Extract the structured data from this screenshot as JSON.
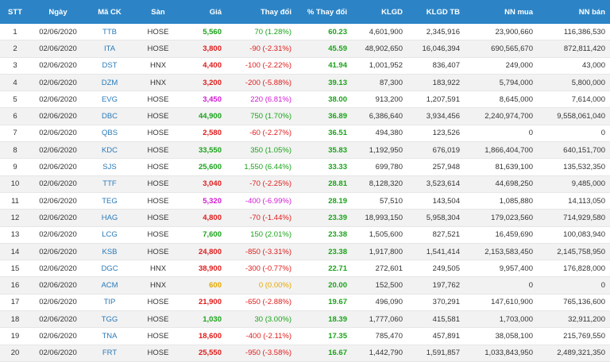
{
  "columns": [
    "STT",
    "Ngày",
    "Mã CK",
    "Sàn",
    "Giá",
    "Thay đổi",
    "% Thay đổi",
    "KLGD",
    "KLGD TB",
    "NN mua",
    "NN bán"
  ],
  "colors": {
    "up": "#1aa31a",
    "down": "#e01b1b",
    "ceiling": "#d11ad1",
    "reference": "#e6a800",
    "header_bg": "#2c84c6"
  },
  "rows": [
    {
      "stt": "1",
      "date": "02/06/2020",
      "symbol": "TTB",
      "exchange": "HOSE",
      "price": "5,560",
      "change": "70 (1.28%)",
      "pct": "60.23",
      "klgd": "4,601,900",
      "klgd_tb": "2,345,916",
      "nn_mua": "23,900,660",
      "nn_ban": "116,386,530",
      "trend": "up"
    },
    {
      "stt": "2",
      "date": "02/06/2020",
      "symbol": "ITA",
      "exchange": "HOSE",
      "price": "3,800",
      "change": "-90 (-2.31%)",
      "pct": "45.59",
      "klgd": "48,902,650",
      "klgd_tb": "16,046,394",
      "nn_mua": "690,565,670",
      "nn_ban": "872,811,420",
      "trend": "down"
    },
    {
      "stt": "3",
      "date": "02/06/2020",
      "symbol": "DST",
      "exchange": "HNX",
      "price": "4,400",
      "change": "-100 (-2.22%)",
      "pct": "41.94",
      "klgd": "1,001,952",
      "klgd_tb": "836,407",
      "nn_mua": "249,000",
      "nn_ban": "43,000",
      "trend": "down"
    },
    {
      "stt": "4",
      "date": "02/06/2020",
      "symbol": "DZM",
      "exchange": "HNX",
      "price": "3,200",
      "change": "-200 (-5.88%)",
      "pct": "39.13",
      "klgd": "87,300",
      "klgd_tb": "183,922",
      "nn_mua": "5,794,000",
      "nn_ban": "5,800,000",
      "trend": "down"
    },
    {
      "stt": "5",
      "date": "02/06/2020",
      "symbol": "EVG",
      "exchange": "HOSE",
      "price": "3,450",
      "change": "220 (6.81%)",
      "pct": "38.00",
      "klgd": "913,200",
      "klgd_tb": "1,207,591",
      "nn_mua": "8,645,000",
      "nn_ban": "7,614,000",
      "trend": "ceil"
    },
    {
      "stt": "6",
      "date": "02/06/2020",
      "symbol": "DBC",
      "exchange": "HOSE",
      "price": "44,900",
      "change": "750 (1.70%)",
      "pct": "36.89",
      "klgd": "6,386,640",
      "klgd_tb": "3,934,456",
      "nn_mua": "2,240,974,700",
      "nn_ban": "9,558,061,040",
      "trend": "up"
    },
    {
      "stt": "7",
      "date": "02/06/2020",
      "symbol": "QBS",
      "exchange": "HOSE",
      "price": "2,580",
      "change": "-60 (-2.27%)",
      "pct": "36.51",
      "klgd": "494,380",
      "klgd_tb": "123,526",
      "nn_mua": "0",
      "nn_ban": "0",
      "trend": "down"
    },
    {
      "stt": "8",
      "date": "02/06/2020",
      "symbol": "KDC",
      "exchange": "HOSE",
      "price": "33,550",
      "change": "350 (1.05%)",
      "pct": "35.83",
      "klgd": "1,192,950",
      "klgd_tb": "676,019",
      "nn_mua": "1,866,404,700",
      "nn_ban": "640,151,700",
      "trend": "up"
    },
    {
      "stt": "9",
      "date": "02/06/2020",
      "symbol": "SJS",
      "exchange": "HOSE",
      "price": "25,600",
      "change": "1,550 (6.44%)",
      "pct": "33.33",
      "klgd": "699,780",
      "klgd_tb": "257,948",
      "nn_mua": "81,639,100",
      "nn_ban": "135,532,350",
      "trend": "up"
    },
    {
      "stt": "10",
      "date": "02/06/2020",
      "symbol": "TTF",
      "exchange": "HOSE",
      "price": "3,040",
      "change": "-70 (-2.25%)",
      "pct": "28.81",
      "klgd": "8,128,320",
      "klgd_tb": "3,523,614",
      "nn_mua": "44,698,250",
      "nn_ban": "9,485,000",
      "trend": "down"
    },
    {
      "stt": "11",
      "date": "02/06/2020",
      "symbol": "TEG",
      "exchange": "HOSE",
      "price": "5,320",
      "change": "-400 (-6.99%)",
      "pct": "28.19",
      "klgd": "57,510",
      "klgd_tb": "143,504",
      "nn_mua": "1,085,880",
      "nn_ban": "14,113,050",
      "trend": "floor"
    },
    {
      "stt": "12",
      "date": "02/06/2020",
      "symbol": "HAG",
      "exchange": "HOSE",
      "price": "4,800",
      "change": "-70 (-1.44%)",
      "pct": "23.39",
      "klgd": "18,993,150",
      "klgd_tb": "5,958,304",
      "nn_mua": "179,023,560",
      "nn_ban": "714,929,580",
      "trend": "down"
    },
    {
      "stt": "13",
      "date": "02/06/2020",
      "symbol": "LCG",
      "exchange": "HOSE",
      "price": "7,600",
      "change": "150 (2.01%)",
      "pct": "23.38",
      "klgd": "1,505,600",
      "klgd_tb": "827,521",
      "nn_mua": "16,459,690",
      "nn_ban": "100,083,940",
      "trend": "up"
    },
    {
      "stt": "14",
      "date": "02/06/2020",
      "symbol": "KSB",
      "exchange": "HOSE",
      "price": "24,800",
      "change": "-850 (-3.31%)",
      "pct": "23.38",
      "klgd": "1,917,800",
      "klgd_tb": "1,541,414",
      "nn_mua": "2,153,583,450",
      "nn_ban": "2,145,758,950",
      "trend": "down"
    },
    {
      "stt": "15",
      "date": "02/06/2020",
      "symbol": "DGC",
      "exchange": "HNX",
      "price": "38,900",
      "change": "-300 (-0.77%)",
      "pct": "22.71",
      "klgd": "272,601",
      "klgd_tb": "249,505",
      "nn_mua": "9,957,400",
      "nn_ban": "176,828,000",
      "trend": "down"
    },
    {
      "stt": "16",
      "date": "02/06/2020",
      "symbol": "ACM",
      "exchange": "HNX",
      "price": "600",
      "change": "0 (0.00%)",
      "pct": "20.00",
      "klgd": "152,500",
      "klgd_tb": "197,762",
      "nn_mua": "0",
      "nn_ban": "0",
      "trend": "ref"
    },
    {
      "stt": "17",
      "date": "02/06/2020",
      "symbol": "TIP",
      "exchange": "HOSE",
      "price": "21,900",
      "change": "-650 (-2.88%)",
      "pct": "19.67",
      "klgd": "496,090",
      "klgd_tb": "370,291",
      "nn_mua": "147,610,900",
      "nn_ban": "765,136,600",
      "trend": "down"
    },
    {
      "stt": "18",
      "date": "02/06/2020",
      "symbol": "TGG",
      "exchange": "HOSE",
      "price": "1,030",
      "change": "30 (3.00%)",
      "pct": "18.39",
      "klgd": "1,777,060",
      "klgd_tb": "415,581",
      "nn_mua": "1,703,000",
      "nn_ban": "32,911,200",
      "trend": "up"
    },
    {
      "stt": "19",
      "date": "02/06/2020",
      "symbol": "TNA",
      "exchange": "HOSE",
      "price": "18,600",
      "change": "-400 (-2.11%)",
      "pct": "17.35",
      "klgd": "785,470",
      "klgd_tb": "457,891",
      "nn_mua": "38,058,100",
      "nn_ban": "215,769,550",
      "trend": "down"
    },
    {
      "stt": "20",
      "date": "02/06/2020",
      "symbol": "FRT",
      "exchange": "HOSE",
      "price": "25,550",
      "change": "-950 (-3.58%)",
      "pct": "16.67",
      "klgd": "1,442,790",
      "klgd_tb": "1,591,857",
      "nn_mua": "1,033,843,950",
      "nn_ban": "2,489,321,350",
      "trend": "down"
    }
  ]
}
